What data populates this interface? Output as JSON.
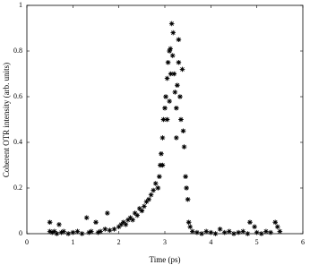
{
  "chart_data": {
    "type": "scatter",
    "xlabel": "Time (ps)",
    "ylabel": "Coherent OTR intensity (arb. units)",
    "color": "#000000",
    "xlim": [
      0,
      6
    ],
    "ylim": [
      0,
      1
    ],
    "xticks": [
      0,
      1,
      2,
      3,
      4,
      5,
      6
    ],
    "yticks": [
      0,
      0.2,
      0.4,
      0.6,
      0.8,
      1
    ],
    "x": [
      0.5,
      0.5,
      0.55,
      0.6,
      0.65,
      0.7,
      0.75,
      0.8,
      0.9,
      1.0,
      1.1,
      1.2,
      1.3,
      1.35,
      1.4,
      1.5,
      1.55,
      1.6,
      1.7,
      1.75,
      1.8,
      1.9,
      2.0,
      2.05,
      2.1,
      2.15,
      2.2,
      2.25,
      2.3,
      2.35,
      2.4,
      2.45,
      2.5,
      2.55,
      2.6,
      2.65,
      2.7,
      2.75,
      2.8,
      2.85,
      2.88,
      2.9,
      2.92,
      2.95,
      2.95,
      2.97,
      3.0,
      3.02,
      3.05,
      3.05,
      3.07,
      3.1,
      3.1,
      3.12,
      3.13,
      3.15,
      3.17,
      3.18,
      3.2,
      3.22,
      3.25,
      3.25,
      3.27,
      3.3,
      3.3,
      3.33,
      3.35,
      3.38,
      3.4,
      3.42,
      3.45,
      3.47,
      3.5,
      3.52,
      3.55,
      3.6,
      3.7,
      3.8,
      3.9,
      4.0,
      4.1,
      4.2,
      4.3,
      4.4,
      4.5,
      4.6,
      4.7,
      4.8,
      4.85,
      4.95,
      5.0,
      5.1,
      5.2,
      5.3,
      5.4,
      5.45,
      5.5
    ],
    "values": [
      0.05,
      0.01,
      0.005,
      0.01,
      0.0,
      0.04,
      0.005,
      0.01,
      0.0,
      0.005,
      0.01,
      0.0,
      0.07,
      0.005,
      0.01,
      0.05,
      0.005,
      0.01,
      0.02,
      0.09,
      0.015,
      0.02,
      0.03,
      0.04,
      0.05,
      0.04,
      0.06,
      0.07,
      0.06,
      0.09,
      0.08,
      0.11,
      0.1,
      0.12,
      0.14,
      0.15,
      0.17,
      0.19,
      0.22,
      0.2,
      0.25,
      0.3,
      0.35,
      0.42,
      0.3,
      0.5,
      0.55,
      0.6,
      0.68,
      0.5,
      0.75,
      0.8,
      0.58,
      0.81,
      0.7,
      0.92,
      0.78,
      0.88,
      0.7,
      0.62,
      0.55,
      0.42,
      0.65,
      0.75,
      0.85,
      0.6,
      0.5,
      0.72,
      0.45,
      0.38,
      0.25,
      0.2,
      0.15,
      0.05,
      0.03,
      0.01,
      0.005,
      0.0,
      0.01,
      0.005,
      0.0,
      0.02,
      0.005,
      0.01,
      0.0,
      0.005,
      0.01,
      0.0,
      0.05,
      0.03,
      0.005,
      0.0,
      0.01,
      0.005,
      0.05,
      0.03,
      0.01
    ]
  }
}
